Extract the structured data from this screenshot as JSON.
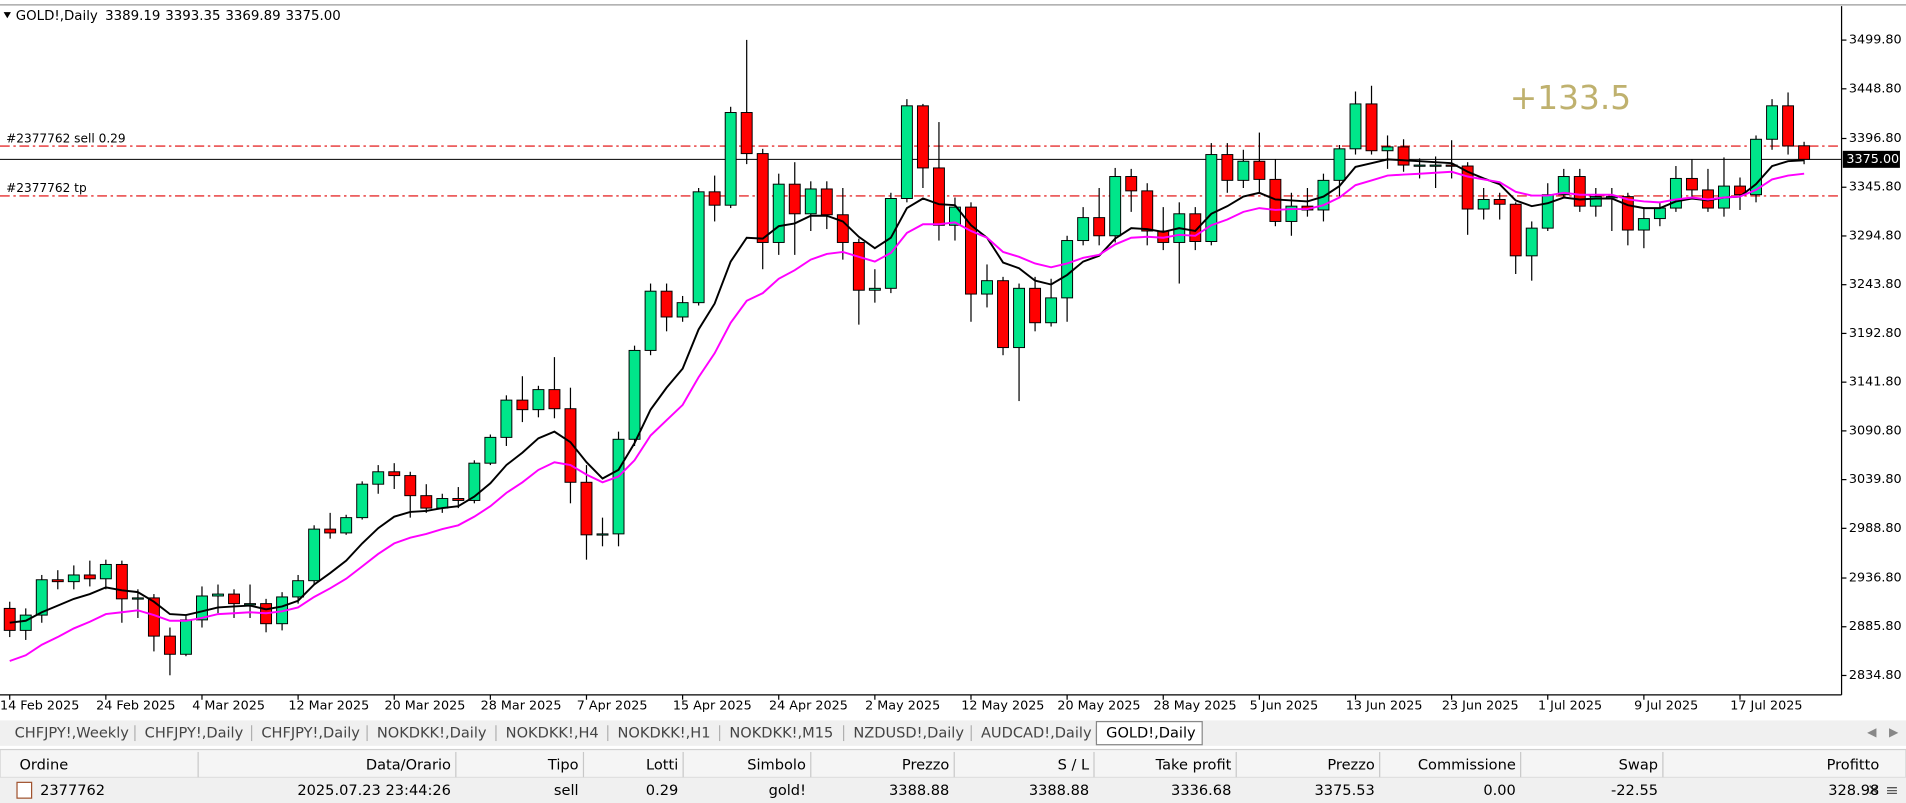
{
  "chart_data": {
    "type": "candlestick",
    "quote": {
      "symbol": "GOLD!,Daily",
      "open": 3389.19,
      "high": 3393.35,
      "low": 3369.89,
      "close": {
        "value": 3375,
        "label": "3375.00"
      }
    },
    "ylim": [
      2814.5,
      3535.4
    ],
    "yticks": [
      {
        "value": 3499.8,
        "label": "3499.80"
      },
      {
        "value": 3448.8,
        "label": "3448.80"
      },
      {
        "value": 3396.8,
        "label": "3396.80"
      },
      {
        "value": 3345.8,
        "label": "3345.80"
      },
      {
        "value": 3294.8,
        "label": "3294.80"
      },
      {
        "value": 3243.8,
        "label": "3243.80"
      },
      {
        "value": 3192.8,
        "label": "3192.80"
      },
      {
        "value": 3141.8,
        "label": "3141.80"
      },
      {
        "value": 3090.8,
        "label": "3090.80"
      },
      {
        "value": 3039.8,
        "label": "3039.80"
      },
      {
        "value": 2988.8,
        "label": "2988.80"
      },
      {
        "value": 2936.8,
        "label": "2936.80"
      },
      {
        "value": 2885.8,
        "label": "2885.80"
      },
      {
        "value": 2834.8,
        "label": "2834.80"
      }
    ],
    "bull_color": "#00e68a",
    "bear_color": "#ff0000",
    "categories": [
      "14 Feb 2025",
      null,
      null,
      null,
      null,
      null,
      "24 Feb 2025",
      null,
      null,
      null,
      null,
      null,
      "4 Mar 2025",
      null,
      null,
      null,
      null,
      null,
      "12 Mar 2025",
      null,
      null,
      null,
      null,
      null,
      "20 Mar 2025",
      null,
      null,
      null,
      null,
      null,
      "28 Mar 2025",
      null,
      null,
      null,
      null,
      null,
      "7 Apr 2025",
      null,
      null,
      null,
      null,
      null,
      "15 Apr 2025",
      null,
      null,
      null,
      null,
      null,
      "24 Apr 2025",
      null,
      null,
      null,
      null,
      null,
      "2 May 2025",
      null,
      null,
      null,
      null,
      null,
      "12 May 2025",
      null,
      null,
      null,
      null,
      null,
      "20 May 2025",
      null,
      null,
      null,
      null,
      null,
      "28 May 2025",
      null,
      null,
      null,
      null,
      null,
      "5 Jun 2025",
      null,
      null,
      null,
      null,
      null,
      "13 Jun 2025",
      null,
      null,
      null,
      null,
      null,
      "23 Jun 2025",
      null,
      null,
      null,
      null,
      null,
      "1 Jul 2025",
      null,
      null,
      null,
      null,
      null,
      "9 Jul 2025",
      null,
      null,
      null,
      null,
      null,
      "17 Jul 2025",
      null,
      null,
      null,
      null
    ],
    "candles": [
      [
        2905,
        2912,
        2875,
        2882
      ],
      [
        2882,
        2905,
        2872,
        2898
      ],
      [
        2898,
        2940,
        2890,
        2935
      ],
      [
        2935,
        2945,
        2925,
        2933
      ],
      [
        2933,
        2950,
        2925,
        2940
      ],
      [
        2940,
        2955,
        2928,
        2936
      ],
      [
        2936,
        2956,
        2925,
        2951
      ],
      [
        2951,
        2955,
        2890,
        2915
      ],
      [
        2915,
        2925,
        2895,
        2916
      ],
      [
        2916,
        2920,
        2860,
        2876
      ],
      [
        2876,
        2885,
        2835,
        2857
      ],
      [
        2857,
        2897,
        2855,
        2893
      ],
      [
        2893,
        2928,
        2885,
        2918
      ],
      [
        2918,
        2930,
        2900,
        2920
      ],
      [
        2920,
        2925,
        2895,
        2910
      ],
      [
        2910,
        2930,
        2895,
        2910
      ],
      [
        2910,
        2915,
        2880,
        2889
      ],
      [
        2889,
        2922,
        2882,
        2917
      ],
      [
        2917,
        2940,
        2910,
        2934
      ],
      [
        2934,
        2992,
        2930,
        2988
      ],
      [
        2988,
        3005,
        2978,
        2984
      ],
      [
        2984,
        3003,
        2982,
        3000
      ],
      [
        3000,
        3038,
        2998,
        3035
      ],
      [
        3035,
        3055,
        3025,
        3048
      ],
      [
        3048,
        3057,
        3030,
        3044
      ],
      [
        3044,
        3048,
        3000,
        3023
      ],
      [
        3023,
        3035,
        3005,
        3010
      ],
      [
        3010,
        3025,
        3005,
        3020
      ],
      [
        3020,
        3032,
        3010,
        3018
      ],
      [
        3018,
        3060,
        3015,
        3057
      ],
      [
        3057,
        3087,
        3055,
        3084
      ],
      [
        3084,
        3128,
        3075,
        3123
      ],
      [
        3123,
        3148,
        3100,
        3113
      ],
      [
        3113,
        3138,
        3105,
        3134
      ],
      [
        3134,
        3168,
        3104,
        3114
      ],
      [
        3114,
        3136,
        3015,
        3037
      ],
      [
        3037,
        3055,
        2956,
        2982
      ],
      [
        2982,
        3000,
        2970,
        2983
      ],
      [
        2983,
        3090,
        2970,
        3082
      ],
      [
        3082,
        3180,
        3075,
        3175
      ],
      [
        3175,
        3245,
        3170,
        3237
      ],
      [
        3237,
        3245,
        3195,
        3210
      ],
      [
        3210,
        3232,
        3205,
        3225
      ],
      [
        3225,
        3345,
        3222,
        3341
      ],
      [
        3341,
        3358,
        3310,
        3327
      ],
      [
        3327,
        3430,
        3324,
        3424
      ],
      [
        3424,
        3500,
        3370,
        3381
      ],
      [
        3381,
        3386,
        3260,
        3288
      ],
      [
        3288,
        3360,
        3275,
        3349
      ],
      [
        3349,
        3372,
        3275,
        3318
      ],
      [
        3318,
        3352,
        3300,
        3344
      ],
      [
        3344,
        3352,
        3302,
        3317
      ],
      [
        3317,
        3345,
        3270,
        3288
      ],
      [
        3288,
        3292,
        3202,
        3238
      ],
      [
        3238,
        3260,
        3225,
        3240
      ],
      [
        3240,
        3340,
        3235,
        3334
      ],
      [
        3334,
        3438,
        3330,
        3431
      ],
      [
        3431,
        3433,
        3345,
        3366
      ],
      [
        3366,
        3414,
        3290,
        3306
      ],
      [
        3306,
        3335,
        3290,
        3325
      ],
      [
        3325,
        3330,
        3205,
        3234
      ],
      [
        3234,
        3265,
        3220,
        3248
      ],
      [
        3248,
        3252,
        3170,
        3178
      ],
      [
        3178,
        3245,
        3122,
        3240
      ],
      [
        3240,
        3252,
        3195,
        3204
      ],
      [
        3204,
        3250,
        3200,
        3230
      ],
      [
        3230,
        3295,
        3205,
        3290
      ],
      [
        3290,
        3325,
        3285,
        3314
      ],
      [
        3314,
        3345,
        3285,
        3295
      ],
      [
        3295,
        3366,
        3288,
        3357
      ],
      [
        3357,
        3365,
        3320,
        3342
      ],
      [
        3342,
        3350,
        3285,
        3300
      ],
      [
        3300,
        3325,
        3280,
        3288
      ],
      [
        3288,
        3330,
        3245,
        3318
      ],
      [
        3318,
        3325,
        3280,
        3289
      ],
      [
        3289,
        3392,
        3285,
        3380
      ],
      [
        3380,
        3392,
        3340,
        3353
      ],
      [
        3353,
        3385,
        3345,
        3373
      ],
      [
        3373,
        3403,
        3340,
        3354
      ],
      [
        3354,
        3375,
        3305,
        3310
      ],
      [
        3310,
        3340,
        3295,
        3326
      ],
      [
        3326,
        3345,
        3315,
        3322
      ],
      [
        3322,
        3360,
        3310,
        3353
      ],
      [
        3353,
        3390,
        3335,
        3386
      ],
      [
        3386,
        3446,
        3380,
        3433
      ],
      [
        3433,
        3452,
        3380,
        3384
      ],
      [
        3384,
        3400,
        3365,
        3388
      ],
      [
        3388,
        3396,
        3362,
        3369
      ],
      [
        3369,
        3376,
        3355,
        3369
      ],
      [
        3369,
        3378,
        3345,
        3369
      ],
      [
        3369,
        3395,
        3355,
        3368
      ],
      [
        3368,
        3372,
        3296,
        3323
      ],
      [
        3323,
        3345,
        3312,
        3333
      ],
      [
        3333,
        3340,
        3312,
        3328
      ],
      [
        3328,
        3330,
        3255,
        3274
      ],
      [
        3274,
        3310,
        3248,
        3303
      ],
      [
        3303,
        3350,
        3300,
        3338
      ],
      [
        3338,
        3365,
        3335,
        3357
      ],
      [
        3357,
        3365,
        3320,
        3326
      ],
      [
        3326,
        3345,
        3315,
        3336
      ],
      [
        3336,
        3345,
        3300,
        3336
      ],
      [
        3336,
        3340,
        3285,
        3301
      ],
      [
        3301,
        3325,
        3282,
        3313
      ],
      [
        3313,
        3330,
        3305,
        3324
      ],
      [
        3324,
        3368,
        3320,
        3355
      ],
      [
        3355,
        3375,
        3335,
        3343
      ],
      [
        3343,
        3365,
        3320,
        3324
      ],
      [
        3324,
        3377,
        3315,
        3347
      ],
      [
        3347,
        3356,
        3322,
        3338
      ],
      [
        3338,
        3400,
        3330,
        3396
      ],
      [
        3396,
        3438,
        3385,
        3431
      ],
      [
        3431,
        3445,
        3380,
        3389
      ],
      [
        3389.19,
        3393.35,
        3369.89,
        3375
      ]
    ],
    "lines": [
      {
        "color": "#000000",
        "values": [
          2890,
          2892,
          2901,
          2908,
          2915,
          2920,
          2927,
          2924,
          2922,
          2912,
          2899,
          2898,
          2902,
          2906,
          2907,
          2908,
          2904,
          2907,
          2913,
          2930,
          2942,
          2955,
          2973,
          2989,
          3001,
          3006,
          3007,
          3010,
          3012,
          3022,
          3036,
          3055,
          3068,
          3083,
          3090,
          3079,
          3058,
          3041,
          3050,
          3078,
          3113,
          3136,
          3156,
          3197,
          3224,
          3268,
          3293,
          3292,
          3305,
          3308,
          3316,
          3316,
          3310,
          3294,
          3282,
          3293,
          3324,
          3334,
          3328,
          3327,
          3306,
          3293,
          3267,
          3261,
          3248,
          3244,
          3254,
          3268,
          3274,
          3292,
          3303,
          3302,
          3299,
          3303,
          3300,
          3318,
          3326,
          3336,
          3340,
          3333,
          3332,
          3331,
          3336,
          3347,
          3367,
          3371,
          3375,
          3374,
          3373,
          3372,
          3371,
          3362,
          3355,
          3349,
          3332,
          3326,
          3329,
          3335,
          3333,
          3334,
          3334,
          3327,
          3324,
          3324,
          3331,
          3334,
          3332,
          3335,
          3336,
          3349,
          3368,
          3373,
          3374
        ]
      },
      {
        "color": "#ff00ff",
        "values": [
          2850,
          2856,
          2867,
          2875,
          2884,
          2891,
          2899,
          2901,
          2903,
          2898,
          2892,
          2892,
          2895,
          2899,
          2900,
          2901,
          2900,
          2902,
          2906,
          2917,
          2926,
          2936,
          2949,
          2962,
          2973,
          2979,
          2983,
          2988,
          2992,
          3001,
          3012,
          3026,
          3037,
          3050,
          3058,
          3055,
          3045,
          3037,
          3043,
          3060,
          3086,
          3102,
          3118,
          3147,
          3172,
          3204,
          3227,
          3235,
          3250,
          3259,
          3270,
          3276,
          3278,
          3273,
          3268,
          3277,
          3298,
          3307,
          3307,
          3309,
          3300,
          3293,
          3278,
          3273,
          3266,
          3262,
          3266,
          3272,
          3275,
          3286,
          3293,
          3294,
          3293,
          3296,
          3295,
          3306,
          3312,
          3320,
          3324,
          3322,
          3323,
          3323,
          3327,
          3335,
          3348,
          3353,
          3358,
          3359,
          3360,
          3361,
          3362,
          3357,
          3354,
          3351,
          3341,
          3337,
          3337,
          3340,
          3338,
          3338,
          3338,
          3333,
          3331,
          3330,
          3333,
          3335,
          3333,
          3335,
          3336,
          3343,
          3354,
          3358,
          3360
        ]
      }
    ],
    "orders": [
      {
        "label": "#2377762 sell 0.29",
        "value": 3388.88
      },
      {
        "label": "#2377762 tp",
        "value": 3336.68
      }
    ],
    "order_color": "#e00000",
    "annotation": {
      "text": "+133.5",
      "color": "#bfb16e"
    }
  },
  "tabs": [
    "CHFJPY!,Weekly",
    "CHFJPY!,Daily",
    "CHFJPY!,Daily",
    "NOKDKK!,Daily",
    "NOKDKK!,H4",
    "NOKDKK!,H1",
    "NOKDKK!,M15",
    "NZDUSD!,Daily",
    "AUDCAD!,Daily",
    "GOLD!,Daily"
  ],
  "active_tab": 9,
  "orders_table": {
    "columns": [
      "Ordine",
      "Data/Orario",
      "Tipo",
      "Lotti",
      "Simbolo",
      "Prezzo",
      "S / L",
      "Take profit",
      "Prezzo",
      "Commissione",
      "Swap",
      "Profitto"
    ],
    "rows": [
      [
        "2377762",
        "2025.07.23 23:44:26",
        "sell",
        "0.29",
        "gold!",
        "3388.88",
        "3388.88",
        "3336.68",
        "3375.53",
        "0.00",
        "-22.55",
        "328.98"
      ]
    ]
  }
}
